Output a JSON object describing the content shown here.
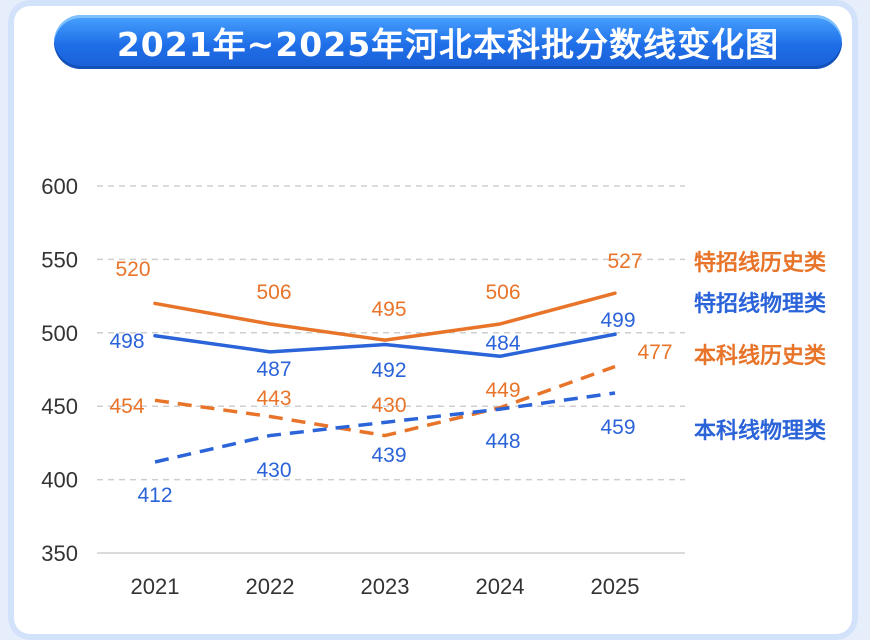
{
  "title": "2021年~2025年河北本科批分数线变化图",
  "chart_data": {
    "type": "line",
    "title": "2021年~2025年河北本科批分数线变化图",
    "categories": [
      "2021",
      "2022",
      "2023",
      "2024",
      "2025"
    ],
    "ylim": [
      350,
      600
    ],
    "yticks": [
      350,
      400,
      450,
      500,
      550,
      600
    ],
    "grid": true,
    "legend_position": "right",
    "series": [
      {
        "name": "特招线历史类",
        "values": [
          520,
          506,
          495,
          506,
          527
        ],
        "color": "#e8742a",
        "style": "solid"
      },
      {
        "name": "特招线物理类",
        "values": [
          498,
          487,
          492,
          484,
          499
        ],
        "color": "#2b63d9",
        "style": "solid"
      },
      {
        "name": "本科线历史类",
        "values": [
          454,
          443,
          430,
          449,
          477
        ],
        "color": "#e8742a",
        "style": "dashed"
      },
      {
        "name": "本科线物理类",
        "values": [
          412,
          430,
          439,
          448,
          459
        ],
        "color": "#2b63d9",
        "style": "dashed"
      }
    ]
  }
}
